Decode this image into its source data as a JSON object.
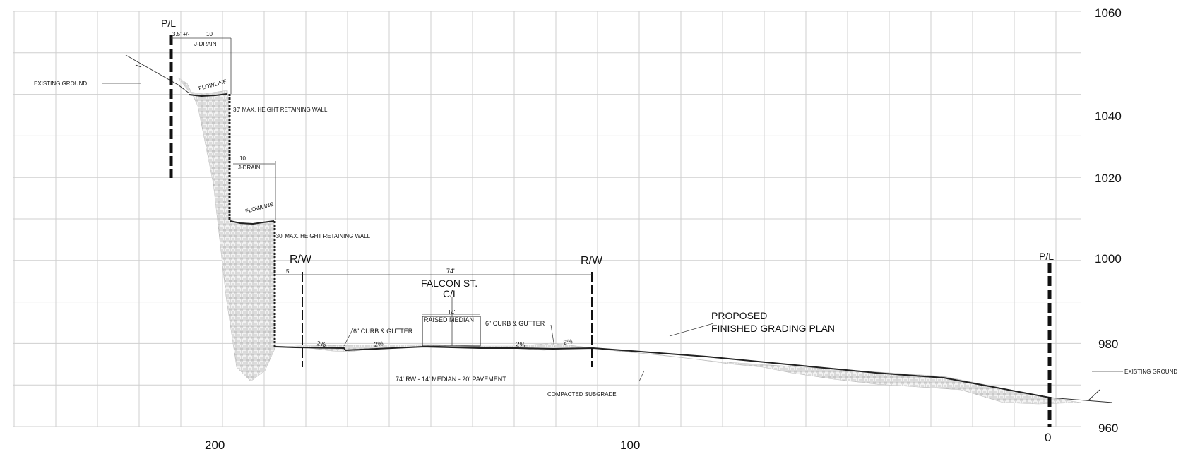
{
  "axes": {
    "elevation_ticks": [
      "1060",
      "1040",
      "1020",
      "1000",
      "980",
      "960"
    ],
    "station_ticks": [
      "200",
      "100",
      "0"
    ]
  },
  "labels": {
    "pl_left": "P/L",
    "pl_right": "P/L",
    "dim_3_5": "3.5' +/-",
    "dim_10_top": "10'",
    "jdrain_top": "J-DRAIN",
    "existing_ground_left": "EXISTING GROUND",
    "flowline_top": "FLOWLINE",
    "wall_upper": "30' MAX. HEIGHT RETAINING WALL",
    "dim_10_mid": "10'",
    "jdrain_mid": "J-DRAIN",
    "flowline_mid": "FLOWLINE",
    "wall_lower": "-30' MAX. HEIGHT RETAINING WALL",
    "rw_left": "R/W",
    "rw_right": "R/W",
    "dim_5": "5'",
    "dim_74": "74'",
    "street_name": "FALCON ST.",
    "centerline": "C/L",
    "dim_14": "14'",
    "raised_median": "RAISED MEDIAN",
    "curb_left": "6\" CURB & GUTTER",
    "curb_right": "6\" CURB & GUTTER",
    "slope_1": "2%",
    "slope_2": "2%",
    "slope_3": "2%",
    "slope_4": "2%",
    "section_note": "74' RW - 14' MEDIAN - 20' PAVEMENT",
    "compacted_subgrade": "COMPACTED SUBGRADE",
    "proposed_line1": "PROPOSED",
    "proposed_line2": "FINISHED GRADING PLAN",
    "existing_ground_right": "EXISTING GROUND"
  }
}
